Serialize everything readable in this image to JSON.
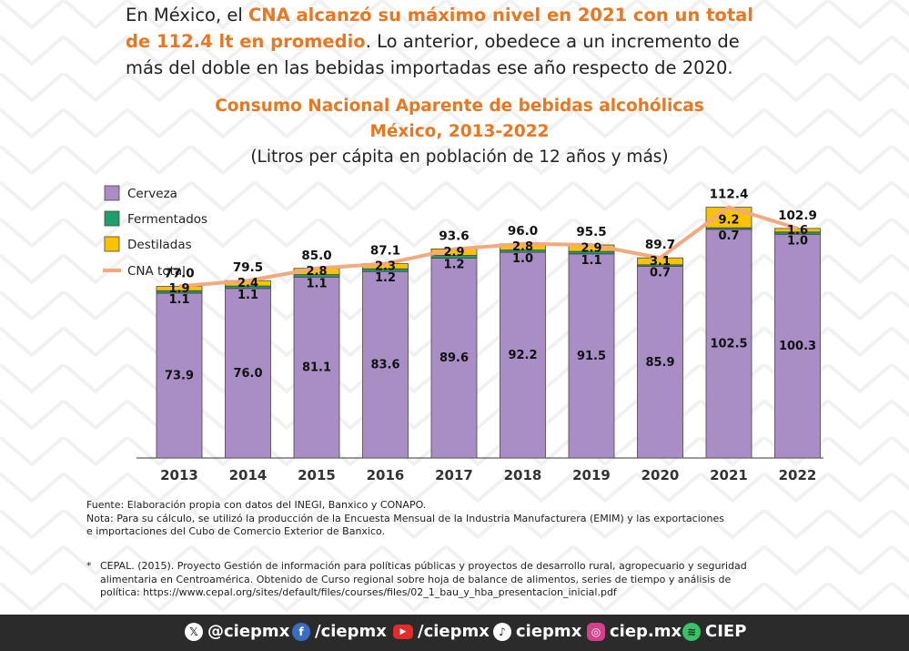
{
  "intro": {
    "p1": "En México, el ",
    "highlight": "CNA alcanzó su máximo nivel en 2021 con un total de 112.4 lt en promedio",
    "p2": ". Lo anterior, obedece a un incremento de más del doble en las bebidas importadas ese año respecto de 2020."
  },
  "chart_data": {
    "type": "bar",
    "stacked": true,
    "title": "Consumo Nacional Aparente de bebidas alcohólicas",
    "title2": "México, 2013-2022",
    "subtitle": "(Litros per cápita en población de 12 años y más)",
    "categories": [
      "2013",
      "2014",
      "2015",
      "2016",
      "2017",
      "2018",
      "2019",
      "2020",
      "2021",
      "2022"
    ],
    "series": [
      {
        "name": "Cerveza",
        "color": "#a98ec6",
        "values": [
          73.9,
          76.0,
          81.1,
          83.6,
          89.6,
          92.2,
          91.5,
          85.9,
          102.5,
          100.3
        ]
      },
      {
        "name": "Fermentados",
        "color": "#1e9e6e",
        "values": [
          1.1,
          1.1,
          1.1,
          1.2,
          1.2,
          1.0,
          1.1,
          0.7,
          0.7,
          1.0
        ]
      },
      {
        "name": "Destiladas",
        "color": "#f9c300",
        "values": [
          1.9,
          2.4,
          2.8,
          2.3,
          2.9,
          2.8,
          2.9,
          3.1,
          9.2,
          1.6
        ]
      }
    ],
    "line": {
      "name": "CNA total",
      "color": "#f2a97d",
      "values": [
        77.0,
        79.5,
        85.0,
        87.1,
        93.6,
        96.0,
        95.5,
        89.7,
        112.4,
        102.9
      ]
    },
    "value_labels": {
      "cerveza": [
        "73.9",
        "76.0",
        "81.1",
        "83.6",
        "89.6",
        "92.2",
        "91.5",
        "85.9",
        "102.5",
        "100.3"
      ],
      "fermentados": [
        "1.1",
        "1.1",
        "1.1",
        "1.2",
        "1.2",
        "1.0",
        "1.1",
        "0.7",
        "0.7",
        "1.0"
      ],
      "destiladas": [
        "1.9",
        "2.4",
        "2.8",
        "2.3",
        "2.9",
        "2.8",
        "2.9",
        "3.1",
        "9.2",
        "1.6"
      ],
      "total": [
        "77.0",
        "79.5",
        "85.0",
        "87.1",
        "93.6",
        "96.0",
        "95.5",
        "89.7",
        "112.4",
        "102.9"
      ]
    },
    "ylim": [
      0,
      118
    ],
    "legend_position": "top-left",
    "grid": false
  },
  "notes": {
    "source": "Fuente: Elaboración propia con datos del INEGI, Banxico y CONAPO.",
    "note1": "Nota: Para su cálculo, se utilizó la producción de la Encuesta Mensual de la Industria Manufacturera (EMIM) y las exportaciones",
    "note2": "e importaciones del Cubo de Comercio Exterior de Banxico.",
    "ref_mark": "*",
    "ref1": "CEPAL. (2015). Proyecto Gestión de información para políticas públicas y proyectos de desarrollo rural, agropecuario y seguridad",
    "ref2": "alimentaria en Centroamérica. Obtenido de Curso regional sobre hoja de balance de alimentos, series de tiempo y análisis de",
    "ref3": "política: https://www.cepal.org/sites/default/files/courses/files/02_1_bau_y_hba_presentacion_inicial.pdf"
  },
  "footer": {
    "items": [
      {
        "icon": "x-icon",
        "label": "@ciepmx"
      },
      {
        "icon": "facebook-icon",
        "label": "/ciepmx"
      },
      {
        "icon": "youtube-icon",
        "label": "/ciepmx"
      },
      {
        "icon": "tiktok-icon",
        "label": "ciepmx"
      },
      {
        "icon": "instagram-icon",
        "label": "ciep.mx"
      },
      {
        "icon": "spotify-icon",
        "label": "CIEP"
      }
    ]
  }
}
